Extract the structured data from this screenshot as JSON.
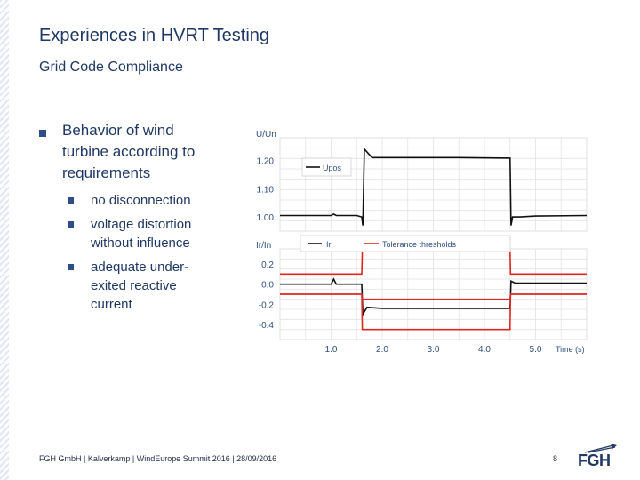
{
  "slide": {
    "title": "Experiences in HVRT Testing",
    "subtitle": "Grid Code Compliance",
    "bullet": "Behavior of wind turbine according to requirements",
    "sub_bullets": [
      "no disconnection",
      "voltage distortion without influence",
      "adequate under-exited reactive current"
    ],
    "footer": "FGH GmbH | Kalverkamp | WindEurope Summit 2016 | 28/09/2016",
    "page_number": "8",
    "logo_text": "FGH",
    "colors": {
      "title": "#1f3864",
      "bullet": "#2e4d8a",
      "ir_series": "#111111",
      "tolerance": "#e0261f"
    }
  },
  "chart_data": [
    {
      "type": "line",
      "ylabel": "U/Un",
      "ylim": [
        0.95,
        1.28
      ],
      "y_ticks": [
        "1.20",
        "1.10",
        "1.00"
      ],
      "legend": "upper-left",
      "grid": true,
      "series": [
        {
          "name": "Upos",
          "color": "#111111",
          "x": [
            0.0,
            0.5,
            1.0,
            1.05,
            1.1,
            1.5,
            1.6,
            1.62,
            1.65,
            1.8,
            2.5,
            3.5,
            4.5,
            4.52,
            4.55,
            4.7,
            5.0,
            6.0
          ],
          "y": [
            1.005,
            1.005,
            1.005,
            1.01,
            1.005,
            1.005,
            1.0,
            0.97,
            1.24,
            1.21,
            1.21,
            1.21,
            1.208,
            0.97,
            1.0,
            1.0,
            1.003,
            1.005
          ]
        }
      ]
    },
    {
      "type": "line",
      "ylabel": "Ir/In",
      "xlabel": "Time (s)",
      "xlim": [
        0.0,
        6.0
      ],
      "ylim": [
        -0.55,
        0.35
      ],
      "x_ticks": [
        "1.0",
        "2.0",
        "3.0",
        "4.0",
        "5.0"
      ],
      "y_ticks": [
        "0.2",
        "0.0",
        "-0.2",
        "-0.4"
      ],
      "legend": "top",
      "grid": true,
      "series": [
        {
          "name": "Ir",
          "color": "#111111",
          "x": [
            0.0,
            0.5,
            1.0,
            1.05,
            1.1,
            1.5,
            1.6,
            1.62,
            1.7,
            2.0,
            3.0,
            4.0,
            4.5,
            4.52,
            4.6,
            5.0,
            6.0
          ],
          "y": [
            0.0,
            0.0,
            0.0,
            0.05,
            0.0,
            0.0,
            0.0,
            -0.3,
            -0.23,
            -0.24,
            -0.24,
            -0.24,
            -0.24,
            0.03,
            0.01,
            0.01,
            0.01
          ]
        },
        {
          "name": "Tolerance thresholds",
          "color": "#e0261f",
          "x": [
            0.0,
            1.6,
            1.61,
            4.5,
            4.51,
            6.0
          ],
          "y": [
            0.1,
            0.1,
            0.33,
            0.33,
            0.1,
            0.1
          ]
        },
        {
          "name": "",
          "color": "#e0261f",
          "x": [
            0.0,
            1.6,
            1.61,
            4.5,
            4.51,
            6.0
          ],
          "y": [
            -0.1,
            -0.1,
            -0.15,
            -0.15,
            -0.1,
            -0.1
          ]
        },
        {
          "name": "",
          "color": "#e0261f",
          "x": [
            0.0,
            1.6,
            1.61,
            4.5,
            4.51,
            6.0
          ],
          "y": [
            -0.1,
            -0.1,
            -0.45,
            -0.45,
            -0.1,
            -0.1
          ]
        }
      ]
    }
  ]
}
